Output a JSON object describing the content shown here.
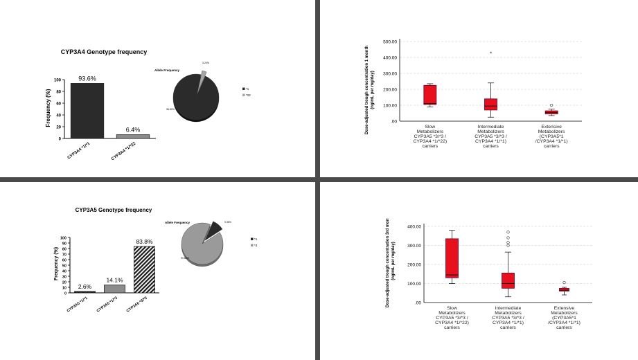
{
  "colors": {
    "bar_dark": "#2b2b2b",
    "bar_light": "#8c8c8c",
    "box_red": "#e8101c",
    "divider": "#4a4a4a",
    "grid": "#cccccc"
  },
  "chart_data": [
    {
      "type": "bar",
      "title": "CYP3A4  Genotype frequency",
      "ylabel": "Frequency (%)",
      "categories": [
        "CYP3A4 *1/*1",
        "CYP3A4 *1/*22"
      ],
      "values": [
        93.6,
        6.4
      ],
      "data_labels": [
        "93.6%",
        "6.4%"
      ],
      "ylim": [
        0,
        100
      ],
      "yticks": [
        0,
        20,
        40,
        60,
        80,
        100
      ]
    },
    {
      "type": "pie",
      "title": "Allele Frequency",
      "labels": [
        "*1",
        "*22"
      ],
      "values": [
        96.8,
        3.2
      ],
      "slice_labels": [
        "96.80%",
        "3.20%"
      ]
    },
    {
      "type": "box",
      "ylabel": "Dose-adjusted trough concentration 1 month (ng/mL per mg/day)",
      "categories": [
        "Slow Metabolizers CYP3A5 *3/*3 / CYP3A4 *1/*22) carriers",
        "Intermediate Metabolizers CYP3A5 *3/*3 / CYP3A4 *1/*1) carriers",
        "Extensive Metabolizers (CYP3A5*1 /CYP3A4 *1/*1) carriers"
      ],
      "category_lines": [
        [
          "Slow",
          "Metabolizers",
          "CYP3A5 *3/*3 /",
          "CYP3A4 *1/*22)",
          "carriers"
        ],
        [
          "Intermediate",
          "Metabolizers",
          "CYP3A5 *3/*3 /",
          "CYP3A4 *1/*1)",
          "carriers"
        ],
        [
          "Extensive",
          "Metabolizers",
          "(CYP3A5*1",
          "/CYP3A4 *1/*1)",
          "carriers"
        ]
      ],
      "yticks": [
        ".00",
        "100.00",
        "200.00",
        "300.00",
        "400.00",
        "500.00"
      ],
      "ylim": [
        0,
        500
      ],
      "boxes": [
        {
          "min": 90,
          "q1": 105,
          "median": 110,
          "q3": 225,
          "max": 235,
          "outliers": [],
          "extreme": []
        },
        {
          "min": 25,
          "q1": 70,
          "median": 95,
          "q3": 140,
          "max": 240,
          "outliers": [],
          "extreme": [
            425
          ]
        },
        {
          "min": 35,
          "q1": 45,
          "median": 55,
          "q3": 65,
          "max": 75,
          "outliers": [
            100
          ],
          "extreme": []
        }
      ]
    },
    {
      "type": "bar",
      "title": "CYP3A5 Genotype frequency",
      "ylabel": "Frequency (%)",
      "categories": [
        "CYP3A5 *1/*1",
        "CYP3A5 *1/*3",
        "CYP3A5 *3/*3"
      ],
      "values": [
        2.6,
        14.1,
        83.8
      ],
      "data_labels": [
        "2.6%",
        "14.1%",
        "83.8%"
      ],
      "ylim": [
        0,
        100
      ],
      "yticks": [
        0,
        10,
        20,
        30,
        40,
        50,
        60,
        70,
        80,
        90,
        100
      ]
    },
    {
      "type": "pie",
      "title": "Allele Frequency",
      "labels": [
        "*1",
        "*3"
      ],
      "values": [
        9.38,
        90.62
      ],
      "slice_labels": [
        "9.38%",
        "90.62%"
      ]
    },
    {
      "type": "box",
      "ylabel": "Dose-adjusted trough concentration 3rd month (ng/mL per mg/day)",
      "categories": [
        "Slow Metabolizers CYP3A5 *3/*3 / CYP3A4 *1/*22) carriers",
        "Intermediate Metabolizers CYP3A5 *3/*3 / CYP3A4 *1/*1) carriers",
        "Extensive Metabolizers (CYP3A5*1 /CYP3A4 *1/*1) carriers"
      ],
      "category_lines": [
        [
          "Slow",
          "Metabolizers",
          "CYP3A5 *3/*3 /",
          "CYP3A4 *1/*22)",
          "carriers"
        ],
        [
          "Intermediate",
          "Metabolizers",
          "CYP3A5 *3/*3 /",
          "CYP3A4 *1/*1)",
          "carriers"
        ],
        [
          "Extensive",
          "Metabolizers",
          "(CYP3A5*1",
          "/CYP3A4 *1/*1)",
          "carriers"
        ]
      ],
      "yticks": [
        ".00",
        "100.00",
        "200.00",
        "300.00",
        "400.00"
      ],
      "ylim": [
        0,
        400
      ],
      "boxes": [
        {
          "min": 100,
          "q1": 130,
          "median": 145,
          "q3": 335,
          "max": 380,
          "outliers": [],
          "extreme": []
        },
        {
          "min": 30,
          "q1": 75,
          "median": 100,
          "q3": 155,
          "max": 265,
          "outliers": [
            300,
            315,
            340,
            370
          ],
          "extreme": []
        },
        {
          "min": 40,
          "q1": 60,
          "median": 65,
          "q3": 75,
          "max": 80,
          "outliers": [
            105
          ],
          "extreme": []
        }
      ]
    }
  ]
}
